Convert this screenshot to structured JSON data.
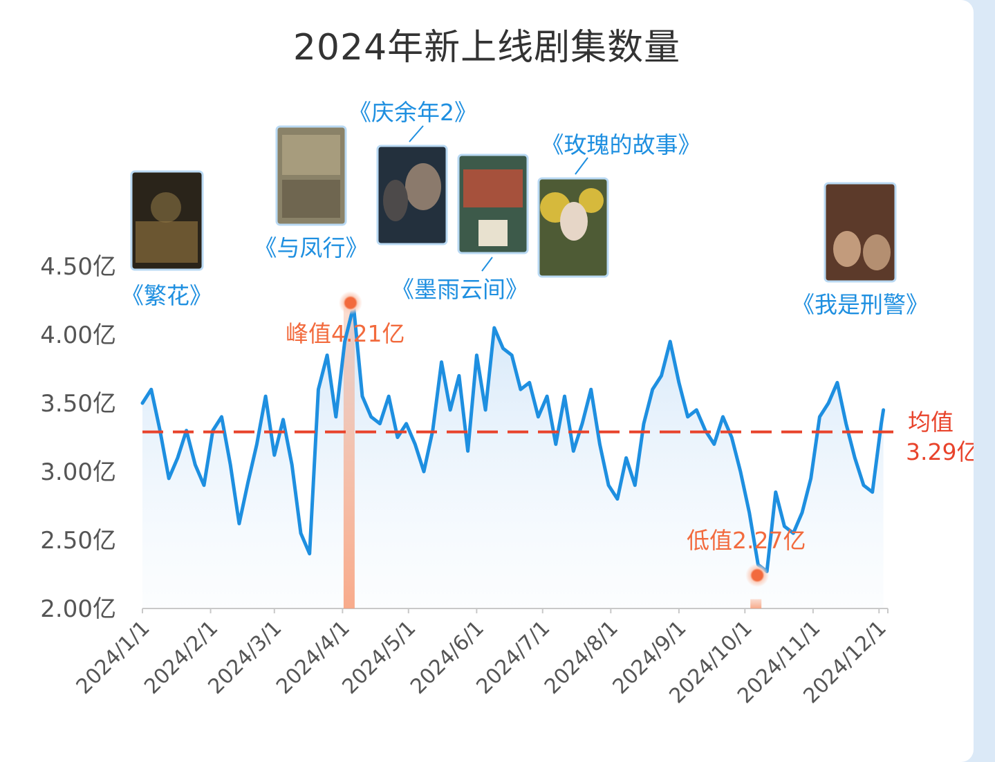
{
  "title": "2024年新上线剧集数量",
  "chart_data": {
    "type": "line",
    "title": "2024年新上线剧集数量",
    "xlabel": "",
    "ylabel": "",
    "ylim": [
      2.0,
      4.5
    ],
    "y_ticks": [
      "2.00亿",
      "2.50亿",
      "3.00亿",
      "3.50亿",
      "4.00亿",
      "4.50亿"
    ],
    "x_ticks": [
      "2024/1/1",
      "2024/2/1",
      "2024/3/1",
      "2024/4/1",
      "2024/5/1",
      "2024/6/1",
      "2024/7/1",
      "2024/8/1",
      "2024/9/1",
      "2024/10/1",
      "2024/11/1",
      "2024/12/1"
    ],
    "grid": false,
    "line_color": "#1e8fe0",
    "average_line_color": "#e8432b",
    "highlight_color": "#f26a3d",
    "series": [
      {
        "name": "",
        "x": [
          "2024-01-01",
          "2024-01-05",
          "2024-01-09",
          "2024-01-13",
          "2024-01-17",
          "2024-01-21",
          "2024-01-25",
          "2024-01-29",
          "2024-02-02",
          "2024-02-06",
          "2024-02-10",
          "2024-02-14",
          "2024-02-18",
          "2024-02-22",
          "2024-02-26",
          "2024-03-01",
          "2024-03-05",
          "2024-03-09",
          "2024-03-13",
          "2024-03-17",
          "2024-03-21",
          "2024-03-25",
          "2024-03-29",
          "2024-04-02",
          "2024-04-06",
          "2024-04-10",
          "2024-04-14",
          "2024-04-18",
          "2024-04-22",
          "2024-04-26",
          "2024-04-30",
          "2024-05-04",
          "2024-05-08",
          "2024-05-12",
          "2024-05-16",
          "2024-05-20",
          "2024-05-24",
          "2024-05-28",
          "2024-06-01",
          "2024-06-05",
          "2024-06-09",
          "2024-06-13",
          "2024-06-17",
          "2024-06-21",
          "2024-06-25",
          "2024-06-29",
          "2024-07-03",
          "2024-07-07",
          "2024-07-11",
          "2024-07-15",
          "2024-07-19",
          "2024-07-23",
          "2024-07-27",
          "2024-07-31",
          "2024-08-04",
          "2024-08-08",
          "2024-08-12",
          "2024-08-16",
          "2024-08-20",
          "2024-08-24",
          "2024-08-28",
          "2024-09-01",
          "2024-09-05",
          "2024-09-09",
          "2024-09-13",
          "2024-09-17",
          "2024-09-21",
          "2024-09-25",
          "2024-09-29",
          "2024-10-03",
          "2024-10-07",
          "2024-10-11",
          "2024-10-15",
          "2024-10-19",
          "2024-10-23",
          "2024-10-27",
          "2024-10-31",
          "2024-11-04",
          "2024-11-08",
          "2024-11-12",
          "2024-11-16",
          "2024-11-20",
          "2024-11-24",
          "2024-11-28",
          "2024-12-02",
          "2024-12-03"
        ],
        "y": [
          3.5,
          3.6,
          3.3,
          2.95,
          3.1,
          3.3,
          3.05,
          2.9,
          3.3,
          3.4,
          3.05,
          2.62,
          2.92,
          3.2,
          3.55,
          3.12,
          3.38,
          3.05,
          2.55,
          2.4,
          3.6,
          3.85,
          3.4,
          3.95,
          4.21,
          3.55,
          3.4,
          3.35,
          3.55,
          3.25,
          3.35,
          3.2,
          3.0,
          3.3,
          3.8,
          3.45,
          3.7,
          3.15,
          3.85,
          3.45,
          4.05,
          3.9,
          3.85,
          3.6,
          3.65,
          3.4,
          3.55,
          3.2,
          3.55,
          3.15,
          3.35,
          3.6,
          3.2,
          2.9,
          2.8,
          3.1,
          2.9,
          3.35,
          3.6,
          3.7,
          3.95,
          3.65,
          3.4,
          3.45,
          3.3,
          3.2,
          3.4,
          3.25,
          3.0,
          2.7,
          2.32,
          2.27,
          2.85,
          2.6,
          2.55,
          2.7,
          2.95,
          3.4,
          3.5,
          3.65,
          3.35,
          3.1,
          2.9,
          2.85,
          3.35,
          3.45
        ]
      }
    ],
    "average": {
      "value": 3.29,
      "label_1": "均值",
      "label_2": "3.29亿"
    },
    "peak": {
      "value": 4.21,
      "date": "2024-04-04",
      "label": "峰值4.21亿"
    },
    "trough": {
      "value": 2.27,
      "date": "2024-10-06",
      "label": "低值2.27亿"
    },
    "annotations": [
      {
        "label": "《繁花》",
        "date": "2024-01-02"
      },
      {
        "label": "《与凤行》",
        "date": "2024-03-18"
      },
      {
        "label": "《庆余年2》",
        "date": "2024-05-17"
      },
      {
        "label": "《墨雨云间》",
        "date": "2024-06-08"
      },
      {
        "label": "《玫瑰的故事》",
        "date": "2024-06-21"
      },
      {
        "label": "《我是刑警》",
        "date": "2024-11-28"
      }
    ]
  }
}
